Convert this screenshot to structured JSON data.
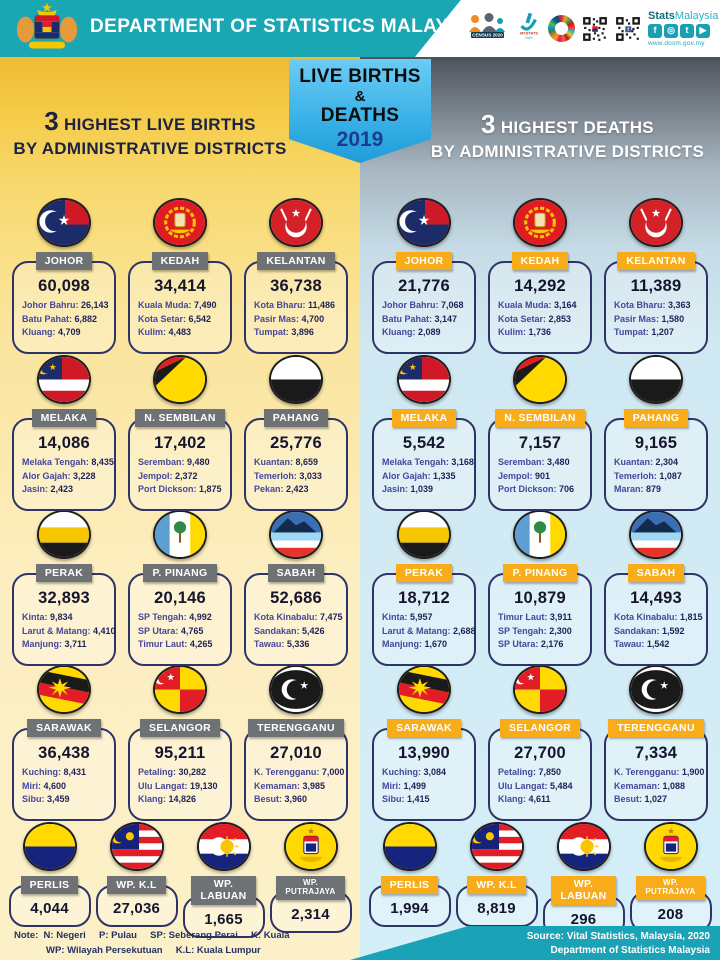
{
  "header": {
    "title": "DEPARTMENT OF STATISTICS MALAYSIA",
    "brand_stats": "Stats",
    "brand_malaysia": "Malaysia",
    "website": "www.dosm.gov.my",
    "census_label": "CENSUS 2020",
    "mystats_label": "MYSTATS",
    "mystats_sub": "DAY",
    "social": [
      {
        "name": "facebook-icon",
        "glyph": "f"
      },
      {
        "name": "instagram-icon",
        "glyph": "◎"
      },
      {
        "name": "twitter-icon",
        "glyph": "t"
      },
      {
        "name": "youtube-icon",
        "glyph": "▶"
      }
    ]
  },
  "ribbon": {
    "line1": "LIVE BIRTHS",
    "amp": "&",
    "line2": "DEATHS",
    "year": "2019"
  },
  "panels": {
    "left": {
      "title_num": "3",
      "title_rest": "HIGHEST LIVE BIRTHS",
      "title_line2": "BY ADMINISTRATIVE DISTRICTS",
      "states": [
        {
          "name": "JOHOR",
          "flag": "johor",
          "total": "60,098",
          "districts": [
            {
              "name": "Johor Bahru:",
              "value": "26,143"
            },
            {
              "name": "Batu Pahat:",
              "value": "6,882"
            },
            {
              "name": "Kluang:",
              "value": "4,709"
            }
          ]
        },
        {
          "name": "KEDAH",
          "flag": "kedah",
          "total": "34,414",
          "districts": [
            {
              "name": "Kuala Muda:",
              "value": "7,490"
            },
            {
              "name": "Kota Setar:",
              "value": "6,542"
            },
            {
              "name": "Kulim:",
              "value": "4,483"
            }
          ]
        },
        {
          "name": "KELANTAN",
          "flag": "kelantan",
          "total": "36,738",
          "districts": [
            {
              "name": "Kota Bharu:",
              "value": "11,486"
            },
            {
              "name": "Pasir Mas:",
              "value": "4,700"
            },
            {
              "name": "Tumpat:",
              "value": "3,896"
            }
          ]
        },
        {
          "name": "MELAKA",
          "flag": "melaka",
          "total": "14,086",
          "districts": [
            {
              "name": "Melaka Tengah:",
              "value": "8,435"
            },
            {
              "name": "Alor Gajah:",
              "value": "3,228"
            },
            {
              "name": "Jasin:",
              "value": "2,423"
            }
          ]
        },
        {
          "name": "N. SEMBILAN",
          "flag": "n9",
          "total": "17,402",
          "districts": [
            {
              "name": "Seremban:",
              "value": "9,480"
            },
            {
              "name": "Jempol:",
              "value": "2,372"
            },
            {
              "name": "Port Dickson:",
              "value": "1,875"
            }
          ]
        },
        {
          "name": "PAHANG",
          "flag": "pahang",
          "total": "25,776",
          "districts": [
            {
              "name": "Kuantan:",
              "value": "8,659"
            },
            {
              "name": "Temerloh:",
              "value": "3,033"
            },
            {
              "name": "Pekan:",
              "value": "2,423"
            }
          ]
        },
        {
          "name": "PERAK",
          "flag": "perak",
          "total": "32,893",
          "districts": [
            {
              "name": "Kinta:",
              "value": "9,834"
            },
            {
              "name": "Larut & Matang:",
              "value": "4,410"
            },
            {
              "name": "Manjung:",
              "value": "3,711"
            }
          ]
        },
        {
          "name": "P. PINANG",
          "flag": "ppinang",
          "total": "20,146",
          "districts": [
            {
              "name": "SP Tengah:",
              "value": "4,992"
            },
            {
              "name": "SP Utara:",
              "value": "4,765"
            },
            {
              "name": "Timur Laut:",
              "value": "4,265"
            }
          ]
        },
        {
          "name": "SABAH",
          "flag": "sabah",
          "total": "52,686",
          "districts": [
            {
              "name": "Kota Kinabalu:",
              "value": "7,475"
            },
            {
              "name": "Sandakan:",
              "value": "5,426"
            },
            {
              "name": "Tawau:",
              "value": "5,336"
            }
          ]
        },
        {
          "name": "SARAWAK",
          "flag": "sarawak",
          "total": "36,438",
          "districts": [
            {
              "name": "Kuching:",
              "value": "8,431"
            },
            {
              "name": "Miri:",
              "value": "4,600"
            },
            {
              "name": "Sibu:",
              "value": "3,459"
            }
          ]
        },
        {
          "name": "SELANGOR",
          "flag": "selangor",
          "total": "95,211",
          "districts": [
            {
              "name": "Petaling:",
              "value": "30,282"
            },
            {
              "name": "Ulu Langat:",
              "value": "19,130"
            },
            {
              "name": "Klang:",
              "value": "14,826"
            }
          ]
        },
        {
          "name": "TERENGGANU",
          "flag": "terengganu",
          "total": "27,010",
          "districts": [
            {
              "name": "K. Terengganu:",
              "value": "7,000"
            },
            {
              "name": "Kemaman:",
              "value": "3,985"
            },
            {
              "name": "Besut:",
              "value": "3,960"
            }
          ]
        }
      ],
      "small_states": [
        {
          "name": "PERLIS",
          "flag": "perlis",
          "total": "4,044"
        },
        {
          "name": "WP. K.L",
          "flag": "kl",
          "total": "27,036"
        },
        {
          "name": "WP. LABUAN",
          "flag": "labuan",
          "total": "1,665"
        },
        {
          "name": "WP. PUTRAJAYA",
          "flag": "putrajaya",
          "total": "2,314"
        }
      ]
    },
    "right": {
      "title_num": "3",
      "title_rest": "HIGHEST DEATHS",
      "title_line2": "BY ADMINISTRATIVE DISTRICTS",
      "states": [
        {
          "name": "JOHOR",
          "flag": "johor",
          "total": "21,776",
          "districts": [
            {
              "name": "Johor Bahru:",
              "value": "7,068"
            },
            {
              "name": "Batu Pahat:",
              "value": "3,147"
            },
            {
              "name": "Kluang:",
              "value": "2,089"
            }
          ]
        },
        {
          "name": "KEDAH",
          "flag": "kedah",
          "total": "14,292",
          "districts": [
            {
              "name": "Kuala Muda:",
              "value": "3,164"
            },
            {
              "name": "Kota Setar:",
              "value": "2,853"
            },
            {
              "name": "Kulim:",
              "value": "1,736"
            }
          ]
        },
        {
          "name": "KELANTAN",
          "flag": "kelantan",
          "total": "11,389",
          "districts": [
            {
              "name": "Kota Bharu:",
              "value": "3,363"
            },
            {
              "name": "Pasir Mas:",
              "value": "1,580"
            },
            {
              "name": "Tumpat:",
              "value": "1,207"
            }
          ]
        },
        {
          "name": "MELAKA",
          "flag": "melaka",
          "total": "5,542",
          "districts": [
            {
              "name": "Melaka Tengah:",
              "value": "3,168"
            },
            {
              "name": "Alor Gajah:",
              "value": "1,335"
            },
            {
              "name": "Jasin:",
              "value": "1,039"
            }
          ]
        },
        {
          "name": "N. SEMBILAN",
          "flag": "n9",
          "total": "7,157",
          "districts": [
            {
              "name": "Seremban:",
              "value": "3,480"
            },
            {
              "name": "Jempol:",
              "value": "901"
            },
            {
              "name": "Port Dickson:",
              "value": "706"
            }
          ]
        },
        {
          "name": "PAHANG",
          "flag": "pahang",
          "total": "9,165",
          "districts": [
            {
              "name": "Kuantan:",
              "value": "2,304"
            },
            {
              "name": "Temerloh:",
              "value": "1,087"
            },
            {
              "name": "Maran:",
              "value": "879"
            }
          ]
        },
        {
          "name": "PERAK",
          "flag": "perak",
          "total": "18,712",
          "districts": [
            {
              "name": "Kinta:",
              "value": "5,957"
            },
            {
              "name": "Larut & Matang:",
              "value": "2,688"
            },
            {
              "name": "Manjung:",
              "value": "1,670"
            }
          ]
        },
        {
          "name": "P. PINANG",
          "flag": "ppinang",
          "total": "10,879",
          "districts": [
            {
              "name": "Timur Laut:",
              "value": "3,911"
            },
            {
              "name": "SP Tengah:",
              "value": "2,300"
            },
            {
              "name": "SP Utara:",
              "value": "2,176"
            }
          ]
        },
        {
          "name": "SABAH",
          "flag": "sabah",
          "total": "14,493",
          "districts": [
            {
              "name": "Kota Kinabalu:",
              "value": "1,815"
            },
            {
              "name": "Sandakan:",
              "value": "1,592"
            },
            {
              "name": "Tawau:",
              "value": "1,542"
            }
          ]
        },
        {
          "name": "SARAWAK",
          "flag": "sarawak",
          "total": "13,990",
          "districts": [
            {
              "name": "Kuching:",
              "value": "3,084"
            },
            {
              "name": "Miri:",
              "value": "1,499"
            },
            {
              "name": "Sibu:",
              "value": "1,415"
            }
          ]
        },
        {
          "name": "SELANGOR",
          "flag": "selangor",
          "total": "27,700",
          "districts": [
            {
              "name": "Petaling:",
              "value": "7,850"
            },
            {
              "name": "Ulu Langat:",
              "value": "5,484"
            },
            {
              "name": "Klang:",
              "value": "4,611"
            }
          ]
        },
        {
          "name": "TERENGGANU",
          "flag": "terengganu",
          "total": "7,334",
          "districts": [
            {
              "name": "K. Terengganu:",
              "value": "1,900"
            },
            {
              "name": "Kemaman:",
              "value": "1,088"
            },
            {
              "name": "Besut:",
              "value": "1,027"
            }
          ]
        }
      ],
      "small_states": [
        {
          "name": "PERLIS",
          "flag": "perlis",
          "total": "1,994"
        },
        {
          "name": "WP. K.L",
          "flag": "kl",
          "total": "8,819"
        },
        {
          "name": "WP. LABUAN",
          "flag": "labuan",
          "total": "296"
        },
        {
          "name": "WP. PUTRAJAYA",
          "flag": "putrajaya",
          "total": "208"
        }
      ]
    }
  },
  "note": {
    "line1": "Note:  N: Negeri     P: Pulau     SP: Seberang Perai     K: Kuala",
    "line2": "WP: Wilayah Persekutuan     K.L: Kuala Lumpur"
  },
  "source": {
    "line1": "Source: Vital Statistics, Malaysia, 2020",
    "line2": "Department of Statistics Malaysia"
  },
  "colors": {
    "header_teal": "#1ba6b4",
    "left_panel_gold": "#f5ca47",
    "right_panel_blue": "#d5eff8",
    "right_title_gray": "#4e535a",
    "gray_label": "#6e7275",
    "orange_label": "#f8ac1a",
    "card_border": "#2f3468",
    "ribbon_blue": "#3cb2e8",
    "year_navy": "#1e3a8f",
    "source_teal": "#1aa2b6"
  },
  "chart_data": {
    "type": "table",
    "title": "LIVE BIRTHS & DEATHS 2019 — 3 Highest by Administrative Districts",
    "measures": [
      "live_births",
      "deaths"
    ],
    "rows": [
      {
        "state": "Johor",
        "live_births": {
          "total": 60098,
          "districts": {
            "Johor Bahru": 26143,
            "Batu Pahat": 6882,
            "Kluang": 4709
          }
        },
        "deaths": {
          "total": 21776,
          "districts": {
            "Johor Bahru": 7068,
            "Batu Pahat": 3147,
            "Kluang": 2089
          }
        }
      },
      {
        "state": "Kedah",
        "live_births": {
          "total": 34414,
          "districts": {
            "Kuala Muda": 7490,
            "Kota Setar": 6542,
            "Kulim": 4483
          }
        },
        "deaths": {
          "total": 14292,
          "districts": {
            "Kuala Muda": 3164,
            "Kota Setar": 2853,
            "Kulim": 1736
          }
        }
      },
      {
        "state": "Kelantan",
        "live_births": {
          "total": 36738,
          "districts": {
            "Kota Bharu": 11486,
            "Pasir Mas": 4700,
            "Tumpat": 3896
          }
        },
        "deaths": {
          "total": 11389,
          "districts": {
            "Kota Bharu": 3363,
            "Pasir Mas": 1580,
            "Tumpat": 1207
          }
        }
      },
      {
        "state": "Melaka",
        "live_births": {
          "total": 14086,
          "districts": {
            "Melaka Tengah": 8435,
            "Alor Gajah": 3228,
            "Jasin": 2423
          }
        },
        "deaths": {
          "total": 5542,
          "districts": {
            "Melaka Tengah": 3168,
            "Alor Gajah": 1335,
            "Jasin": 1039
          }
        }
      },
      {
        "state": "N. Sembilan",
        "live_births": {
          "total": 17402,
          "districts": {
            "Seremban": 9480,
            "Jempol": 2372,
            "Port Dickson": 1875
          }
        },
        "deaths": {
          "total": 7157,
          "districts": {
            "Seremban": 3480,
            "Jempol": 901,
            "Port Dickson": 706
          }
        }
      },
      {
        "state": "Pahang",
        "live_births": {
          "total": 25776,
          "districts": {
            "Kuantan": 8659,
            "Temerloh": 3033,
            "Pekan": 2423
          }
        },
        "deaths": {
          "total": 9165,
          "districts": {
            "Kuantan": 2304,
            "Temerloh": 1087,
            "Maran": 879
          }
        }
      },
      {
        "state": "Perak",
        "live_births": {
          "total": 32893,
          "districts": {
            "Kinta": 9834,
            "Larut & Matang": 4410,
            "Manjung": 3711
          }
        },
        "deaths": {
          "total": 18712,
          "districts": {
            "Kinta": 5957,
            "Larut & Matang": 2688,
            "Manjung": 1670
          }
        }
      },
      {
        "state": "P. Pinang",
        "live_births": {
          "total": 20146,
          "districts": {
            "SP Tengah": 4992,
            "SP Utara": 4765,
            "Timur Laut": 4265
          }
        },
        "deaths": {
          "total": 10879,
          "districts": {
            "Timur Laut": 3911,
            "SP Tengah": 2300,
            "SP Utara": 2176
          }
        }
      },
      {
        "state": "Sabah",
        "live_births": {
          "total": 52686,
          "districts": {
            "Kota Kinabalu": 7475,
            "Sandakan": 5426,
            "Tawau": 5336
          }
        },
        "deaths": {
          "total": 14493,
          "districts": {
            "Kota Kinabalu": 1815,
            "Sandakan": 1592,
            "Tawau": 1542
          }
        }
      },
      {
        "state": "Sarawak",
        "live_births": {
          "total": 36438,
          "districts": {
            "Kuching": 8431,
            "Miri": 4600,
            "Sibu": 3459
          }
        },
        "deaths": {
          "total": 13990,
          "districts": {
            "Kuching": 3084,
            "Miri": 1499,
            "Sibu": 1415
          }
        }
      },
      {
        "state": "Selangor",
        "live_births": {
          "total": 95211,
          "districts": {
            "Petaling": 30282,
            "Ulu Langat": 19130,
            "Klang": 14826
          }
        },
        "deaths": {
          "total": 27700,
          "districts": {
            "Petaling": 7850,
            "Ulu Langat": 5484,
            "Klang": 4611
          }
        }
      },
      {
        "state": "Terengganu",
        "live_births": {
          "total": 27010,
          "districts": {
            "K. Terengganu": 7000,
            "Kemaman": 3985,
            "Besut": 3960
          }
        },
        "deaths": {
          "total": 7334,
          "districts": {
            "K. Terengganu": 1900,
            "Kemaman": 1088,
            "Besut": 1027
          }
        }
      },
      {
        "state": "Perlis",
        "live_births": {
          "total": 4044
        },
        "deaths": {
          "total": 1994
        }
      },
      {
        "state": "WP. Kuala Lumpur",
        "live_births": {
          "total": 27036
        },
        "deaths": {
          "total": 8819
        }
      },
      {
        "state": "WP. Labuan",
        "live_births": {
          "total": 1665
        },
        "deaths": {
          "total": 296
        }
      },
      {
        "state": "WP. Putrajaya",
        "live_births": {
          "total": 2314
        },
        "deaths": {
          "total": 208
        }
      }
    ]
  }
}
